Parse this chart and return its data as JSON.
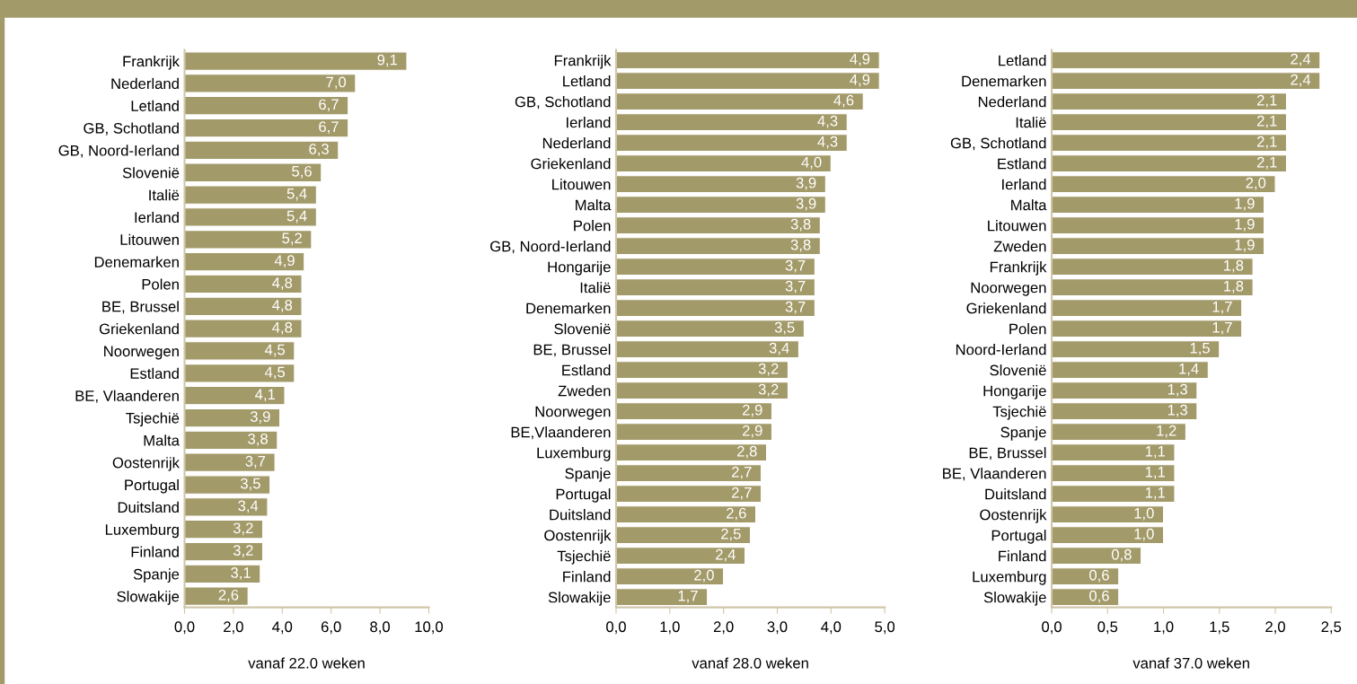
{
  "chart_data": [
    {
      "type": "bar",
      "orientation": "horizontal",
      "xlabel": "vanaf 22.0 weken",
      "color": "#a39a6a",
      "legend": false,
      "grid": false,
      "categories": [
        "Frankrijk",
        "Nederland",
        "Letland",
        "GB, Schotland",
        "GB, Noord-Ierland",
        "Slovenië",
        "Italië",
        "Ierland",
        "Litouwen",
        "Denemarken",
        "Polen",
        "BE, Brussel",
        "Griekenland",
        "Noorwegen",
        "Estland",
        "BE, Vlaanderen",
        "Tsjechië",
        "Malta",
        "Oostenrijk",
        "Portugal",
        "Duitsland",
        "Luxemburg",
        "Finland",
        "Spanje",
        "Slowakije"
      ],
      "values": [
        9.1,
        7.0,
        6.7,
        6.7,
        6.3,
        5.6,
        5.4,
        5.4,
        5.2,
        4.9,
        4.8,
        4.8,
        4.8,
        4.5,
        4.5,
        4.1,
        3.9,
        3.8,
        3.7,
        3.5,
        3.4,
        3.2,
        3.2,
        3.1,
        2.6
      ],
      "value_labels": [
        "9,1",
        "7,0",
        "6,7",
        "6,7",
        "6,3",
        "5,6",
        "5,4",
        "5,4",
        "5,2",
        "4,9",
        "4,8",
        "4,8",
        "4,8",
        "4,5",
        "4,5",
        "4,1",
        "3,9",
        "3,8",
        "3,7",
        "3,5",
        "3,4",
        "3,2",
        "3,2",
        "3,1",
        "2,6"
      ],
      "xlim": [
        0,
        10
      ],
      "xticks": [
        {
          "value": 0,
          "label": "0,0"
        },
        {
          "value": 2,
          "label": "2,0"
        },
        {
          "value": 4,
          "label": "4,0"
        },
        {
          "value": 6,
          "label": "6,0"
        },
        {
          "value": 8,
          "label": "8,0"
        },
        {
          "value": 10,
          "label": "10,0"
        }
      ]
    },
    {
      "type": "bar",
      "orientation": "horizontal",
      "xlabel": "vanaf 28.0 weken",
      "color": "#a39a6a",
      "legend": false,
      "grid": false,
      "categories": [
        "Frankrijk",
        "Letland",
        "GB, Schotland",
        "Ierland",
        "Nederland",
        "Griekenland",
        "Litouwen",
        "Malta",
        "Polen",
        "GB, Noord-Ierland",
        "Hongarije",
        "Italië",
        "Denemarken",
        "Slovenië",
        "BE, Brussel",
        "Estland",
        "Zweden",
        "Noorwegen",
        "BE,Vlaanderen",
        "Luxemburg",
        "Spanje",
        "Portugal",
        "Duitsland",
        "Oostenrijk",
        "Tsjechië",
        "Finland",
        "Slowakije"
      ],
      "values": [
        4.9,
        4.9,
        4.6,
        4.3,
        4.3,
        4.0,
        3.9,
        3.9,
        3.8,
        3.8,
        3.7,
        3.7,
        3.7,
        3.5,
        3.4,
        3.2,
        3.2,
        2.9,
        2.9,
        2.8,
        2.7,
        2.7,
        2.6,
        2.5,
        2.4,
        2.0,
        1.7
      ],
      "value_labels": [
        "4,9",
        "4,9",
        "4,6",
        "4,3",
        "4,3",
        "4,0",
        "3,9",
        "3,9",
        "3,8",
        "3,8",
        "3,7",
        "3,7",
        "3,7",
        "3,5",
        "3,4",
        "3,2",
        "3,2",
        "2,9",
        "2,9",
        "2,8",
        "2,7",
        "2,7",
        "2,6",
        "2,5",
        "2,4",
        "2,0",
        "1,7"
      ],
      "xlim": [
        0,
        5
      ],
      "xticks": [
        {
          "value": 0,
          "label": "0,0"
        },
        {
          "value": 1,
          "label": "1,0"
        },
        {
          "value": 2,
          "label": "2,0"
        },
        {
          "value": 3,
          "label": "3,0"
        },
        {
          "value": 4,
          "label": "4,0"
        },
        {
          "value": 5,
          "label": "5,0"
        }
      ]
    },
    {
      "type": "bar",
      "orientation": "horizontal",
      "xlabel": "vanaf 37.0 weken",
      "color": "#a39a6a",
      "legend": false,
      "grid": false,
      "categories": [
        "Letland",
        "Denemarken",
        "Nederland",
        "Italië",
        "GB, Schotland",
        "Estland",
        "Ierland",
        "Malta",
        "Litouwen",
        "Zweden",
        "Frankrijk",
        "Noorwegen",
        "Griekenland",
        "Polen",
        "Noord-Ierland",
        "Slovenië",
        "Hongarije",
        "Tsjechië",
        "Spanje",
        "BE, Brussel",
        "BE, Vlaanderen",
        "Duitsland",
        "Oostenrijk",
        "Portugal",
        "Finland",
        "Luxemburg",
        "Slowakije"
      ],
      "values": [
        2.4,
        2.4,
        2.1,
        2.1,
        2.1,
        2.1,
        2.0,
        1.9,
        1.9,
        1.9,
        1.8,
        1.8,
        1.7,
        1.7,
        1.5,
        1.4,
        1.3,
        1.3,
        1.2,
        1.1,
        1.1,
        1.1,
        1.0,
        1.0,
        0.8,
        0.6,
        0.6
      ],
      "value_labels": [
        "2,4",
        "2,4",
        "2,1",
        "2,1",
        "2,1",
        "2,1",
        "2,0",
        "1,9",
        "1,9",
        "1,9",
        "1,8",
        "1,8",
        "1,7",
        "1,7",
        "1,5",
        "1,4",
        "1,3",
        "1,3",
        "1,2",
        "1,1",
        "1,1",
        "1,1",
        "1,0",
        "1,0",
        "0,8",
        "0,6",
        "0,6"
      ],
      "xlim": [
        0,
        2.5
      ],
      "xticks": [
        {
          "value": 0,
          "label": "0,0"
        },
        {
          "value": 0.5,
          "label": "0,5"
        },
        {
          "value": 1,
          "label": "1,0"
        },
        {
          "value": 1.5,
          "label": "1,5"
        },
        {
          "value": 2,
          "label": "2,0"
        },
        {
          "value": 2.5,
          "label": "2,5"
        }
      ]
    }
  ]
}
